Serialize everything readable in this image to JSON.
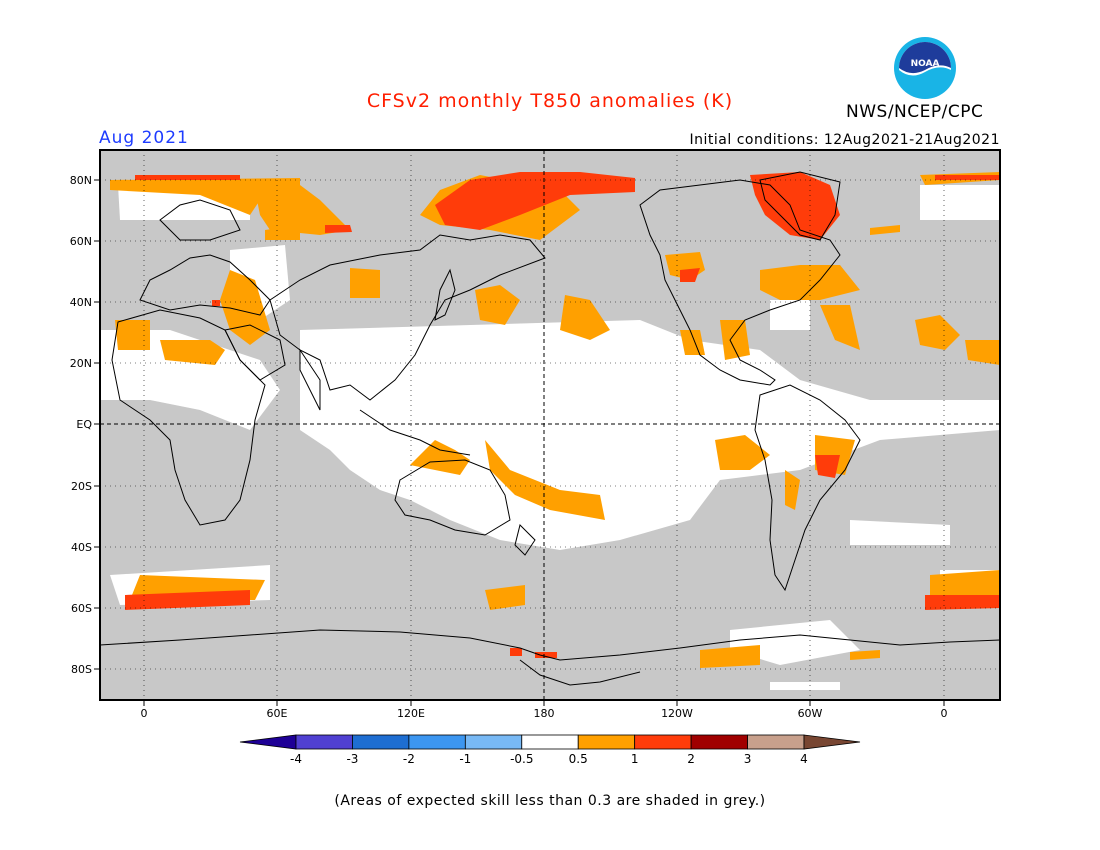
{
  "header": {
    "title": "CFSv2 monthly T850 anomalies (K)",
    "month": "Aug 2021",
    "initial_conditions": "Initial conditions: 12Aug2021-21Aug2021",
    "agency": "NWS/NCEP/CPC",
    "logo_text": "NOAA"
  },
  "map": {
    "lat_labels": [
      "80N",
      "60N",
      "40N",
      "20N",
      "EQ",
      "20S",
      "40S",
      "60S",
      "80S"
    ],
    "lon_labels": [
      "0",
      "60E",
      "120E",
      "180",
      "120W",
      "60W",
      "0"
    ],
    "gridlines": "dotted",
    "skill_mask_color": "#c8c8c8"
  },
  "colorbar": {
    "tick_labels": [
      "-4",
      "-3",
      "-2",
      "-1",
      "-0.5",
      "0.5",
      "1",
      "2",
      "3",
      "4"
    ],
    "colors": [
      "#1e0096",
      "#5040d2",
      "#1e6ed2",
      "#3c96f0",
      "#78b9f5",
      "#ffffff",
      "#ffa000",
      "#ff3c0a",
      "#a00000",
      "#c8a08c",
      "#784632"
    ]
  },
  "footnote": "(Areas of expected skill less than 0.3 are shaded in grey.)",
  "colors": {
    "title": "#ff1e00",
    "month": "#1e3cff",
    "grey": "#c8c8c8",
    "orange": "#ffa000",
    "red": "#ff3c0a"
  }
}
